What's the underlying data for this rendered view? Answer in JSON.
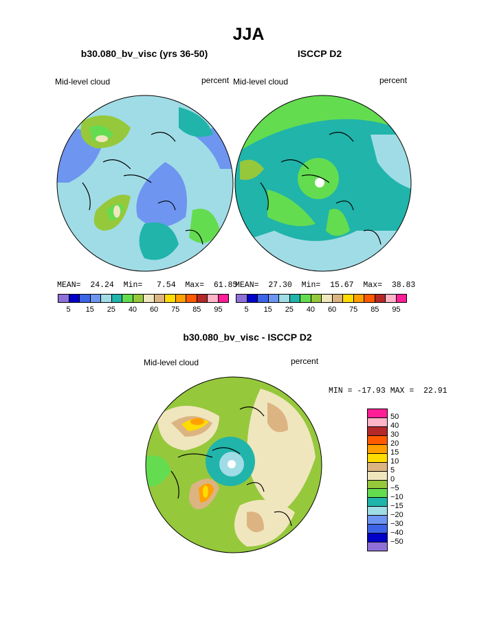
{
  "main_title": "JJA",
  "panels": [
    {
      "title": "b30.080_bv_visc (yrs 36-50)",
      "left_label": "Mid-level cloud",
      "right_label": "percent",
      "stats": {
        "mean_label": "MEAN=",
        "mean": "24.24",
        "min_label": "Min=",
        "min": "7.54",
        "max_label": "Max=",
        "max": "61.85"
      }
    },
    {
      "title": "ISCCP D2",
      "left_label": "Mid-level cloud",
      "right_label": "percent",
      "stats": {
        "mean_label": "MEAN=",
        "mean": "27.30",
        "min_label": "Min=",
        "min": "15.67",
        "max_label": "Max=",
        "max": "38.83"
      }
    }
  ],
  "colorbar": {
    "colors": [
      "#8f70d8",
      "#0000c8",
      "#3c64e6",
      "#6e96f0",
      "#a0dce6",
      "#20b4aa",
      "#64dc50",
      "#96c83c",
      "#f0e6be",
      "#dcb482",
      "#ffdc00",
      "#ffa000",
      "#ff5a00",
      "#b42828",
      "#ffb4c8",
      "#ff1e96"
    ],
    "tick_labels": [
      "5",
      "15",
      "25",
      "40",
      "60",
      "75",
      "85",
      "95"
    ]
  },
  "diff_panel": {
    "title": "b30.080_bv_visc - ISCCP D2",
    "left_label": "Mid-level cloud",
    "right_label": "percent",
    "minmax": "MIN = -17.93 MAX =  22.91",
    "colors": [
      "#ff1e96",
      "#ffb4c8",
      "#b42828",
      "#ff5a00",
      "#ffa000",
      "#ffdc00",
      "#dcb482",
      "#f0e6be",
      "#96c83c",
      "#64dc50",
      "#20b4aa",
      "#a0dce6",
      "#6e96f0",
      "#3c64e6",
      "#0000c8",
      "#8f70d8"
    ],
    "labels": [
      "50",
      "40",
      "30",
      "20",
      "15",
      "10",
      "5",
      "0",
      "−5",
      "−10",
      "−15",
      "−20",
      "−30",
      "−40",
      "−50"
    ]
  }
}
